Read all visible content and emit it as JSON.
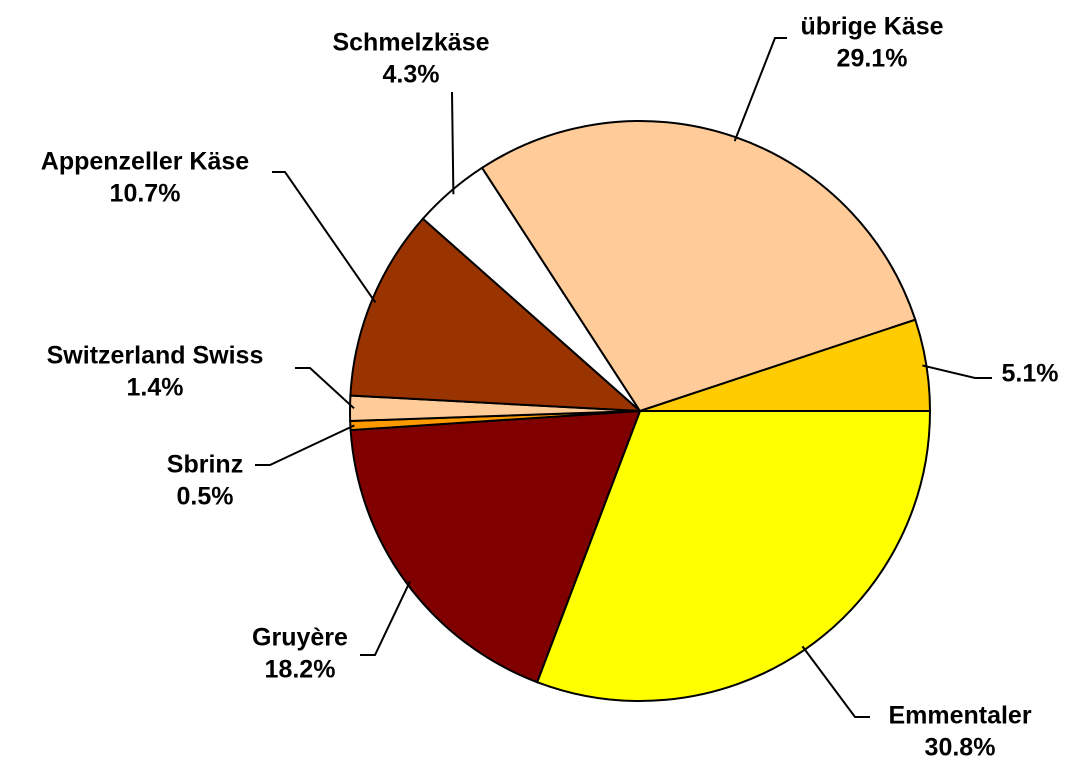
{
  "chart_data": {
    "type": "pie",
    "categories": [
      "Emmentaler",
      "Gruyère",
      "Sbrinz",
      "Switzerland Swiss",
      "Appenzeller Käse",
      "Schmelzkäse",
      "übrige Käse",
      null
    ],
    "values": [
      30.8,
      18.2,
      0.5,
      1.4,
      10.7,
      4.3,
      29.1,
      5.1
    ],
    "value_labels": [
      "30.8%",
      "18.2%",
      "0.5%",
      "1.4%",
      "10.7%",
      "4.3%",
      "29.1%",
      "5.1%"
    ],
    "colors": [
      "#ffff00",
      "#800000",
      "#ff9900",
      "#ffcc99",
      "#993300",
      "#ffffff",
      "#ffcc99",
      "#ffcc00"
    ]
  }
}
